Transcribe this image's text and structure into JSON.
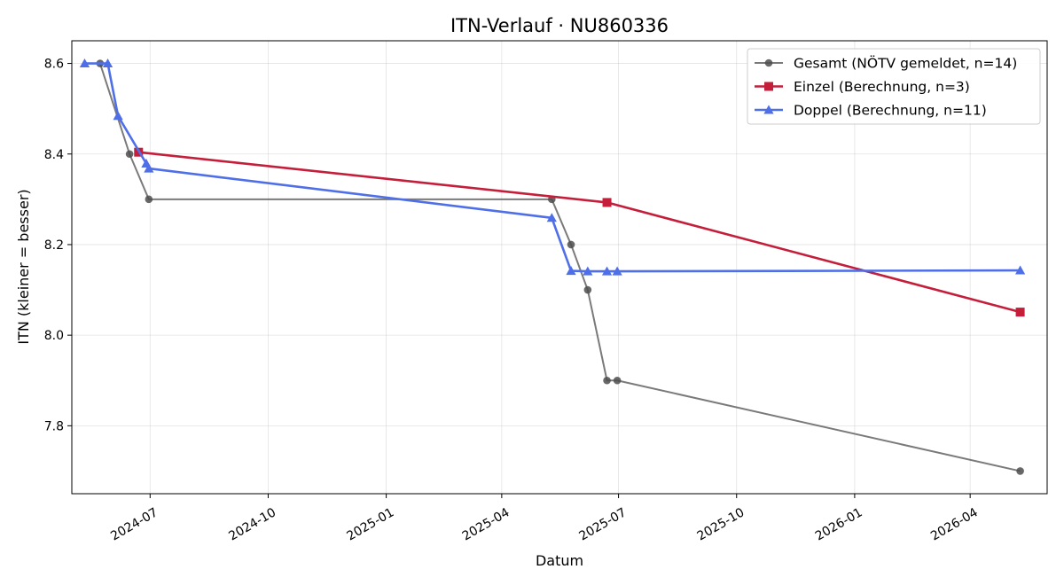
{
  "chart_data": {
    "type": "line",
    "title": "ITN-Verlauf · NU860336",
    "xlabel": "Datum",
    "ylabel": "ITN  (kleiner = besser)",
    "x_type": "date",
    "xlim": [
      "2024-05-01",
      "2026-05-31"
    ],
    "ylim": [
      7.65,
      8.65
    ],
    "x_ticks": [
      "2024-07-01",
      "2024-10-01",
      "2025-01-01",
      "2025-04-01",
      "2025-07-01",
      "2025-10-01",
      "2026-01-01",
      "2026-04-01"
    ],
    "x_tick_labels": [
      "2024-07",
      "2024-10",
      "2025-01",
      "2025-04",
      "2025-07",
      "2025-10",
      "2026-01",
      "2026-04"
    ],
    "y_ticks": [
      7.8,
      8.0,
      8.2,
      8.4,
      8.6
    ],
    "y_tick_labels": [
      "7.8",
      "8.0",
      "8.2",
      "8.4",
      "8.6"
    ],
    "grid": true,
    "legend_position": "top-right",
    "series": [
      {
        "name": "Gesamt (NÖTV gemeldet, n=14)",
        "color": "#4d4d4d",
        "marker": "circle",
        "points": [
          {
            "x": "2024-05-23",
            "y": 8.6
          },
          {
            "x": "2024-06-15",
            "y": 8.4
          },
          {
            "x": "2024-06-30",
            "y": 8.3
          },
          {
            "x": "2025-05-10",
            "y": 8.3
          },
          {
            "x": "2025-05-25",
            "y": 8.2
          },
          {
            "x": "2025-06-07",
            "y": 8.1
          },
          {
            "x": "2025-06-22",
            "y": 7.9
          },
          {
            "x": "2025-06-30",
            "y": 7.9
          },
          {
            "x": "2026-05-10",
            "y": 7.7
          }
        ]
      },
      {
        "name": "Einzel (Berechnung, n=3)",
        "color": "#c41e3a",
        "marker": "square",
        "points": [
          {
            "x": "2024-06-22",
            "y": 8.404
          },
          {
            "x": "2025-06-22",
            "y": 8.293
          },
          {
            "x": "2026-05-10",
            "y": 8.051
          }
        ]
      },
      {
        "name": "Doppel (Berechnung, n=11)",
        "color": "#4f6fe8",
        "marker": "triangle",
        "points": [
          {
            "x": "2024-05-11",
            "y": 8.6
          },
          {
            "x": "2024-05-29",
            "y": 8.6
          },
          {
            "x": "2024-06-06",
            "y": 8.484
          },
          {
            "x": "2024-06-28",
            "y": 8.379
          },
          {
            "x": "2024-06-30",
            "y": 8.368
          },
          {
            "x": "2025-05-10",
            "y": 8.259
          },
          {
            "x": "2025-05-25",
            "y": 8.142
          },
          {
            "x": "2025-06-07",
            "y": 8.141
          },
          {
            "x": "2025-06-22",
            "y": 8.141
          },
          {
            "x": "2025-06-30",
            "y": 8.141
          },
          {
            "x": "2026-05-10",
            "y": 8.143
          }
        ]
      }
    ]
  }
}
